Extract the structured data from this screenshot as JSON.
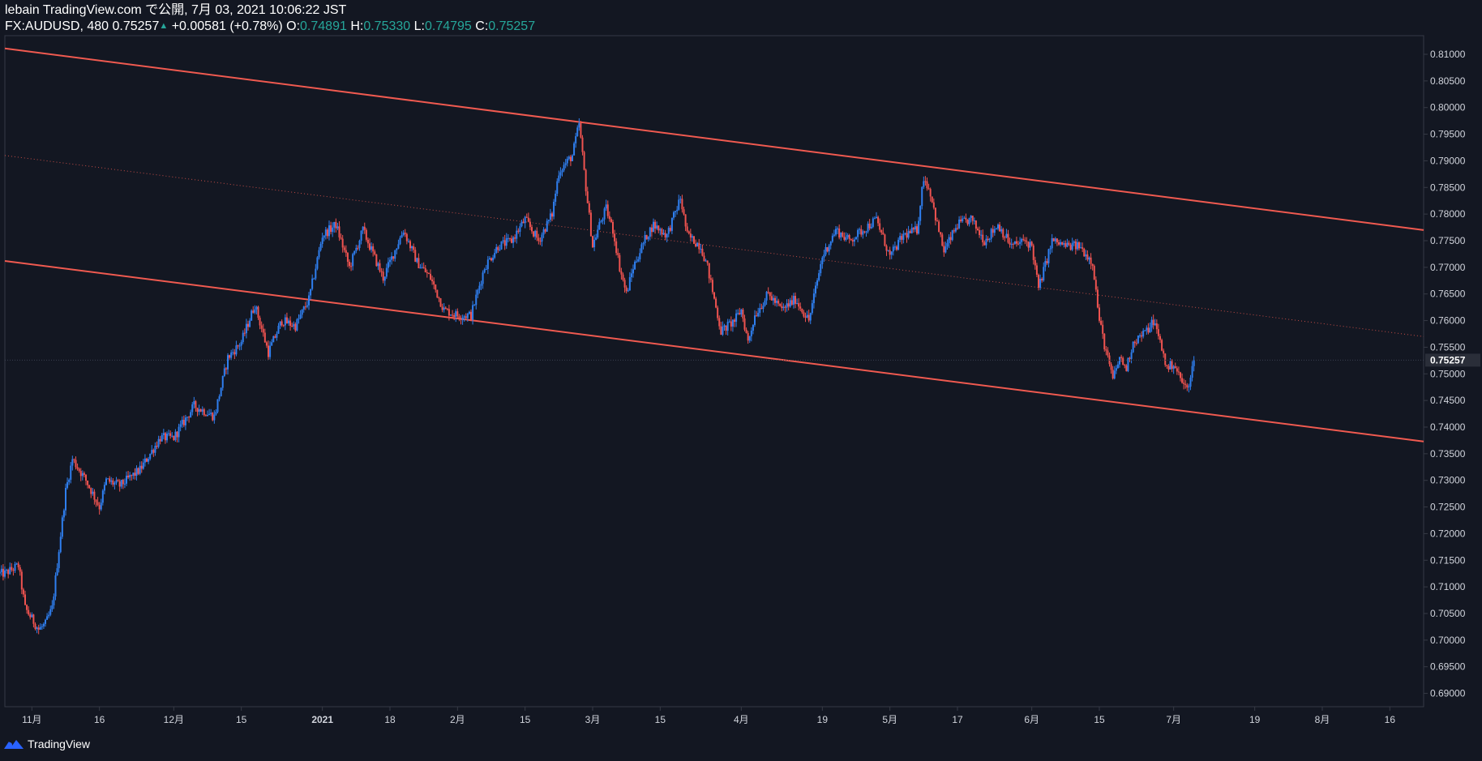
{
  "header": {
    "published": "lebain TradingView.com で公開, 7月 03, 2021 10:06:22 JST",
    "symbol": "FX:AUDUSD, 480",
    "last": "0.75257",
    "change": "+0.00581 (+0.78%)",
    "o_label": "O:",
    "o_value": "0.74891",
    "h_label": "H:",
    "h_value": "0.75330",
    "l_label": "L:",
    "l_value": "0.74795",
    "c_label": "C:",
    "c_value": "0.75257"
  },
  "footer": {
    "brand": "TradingView"
  },
  "colors": {
    "background": "#131722",
    "up": "#2f7ff0",
    "down": "#ef5350",
    "channel": "#f05a50",
    "axis_text": "#d1d4dc",
    "grid_border": "#363a45",
    "teal": "#26a69a"
  },
  "chart_data": {
    "type": "candlestick",
    "symbol": "FX:AUDUSD",
    "interval": "480",
    "ylim": [
      0.6875,
      0.8135
    ],
    "y_ticks": [
      "0.81000",
      "0.80500",
      "0.80000",
      "0.79500",
      "0.79000",
      "0.78500",
      "0.78000",
      "0.77500",
      "0.77000",
      "0.76500",
      "0.76000",
      "0.75500",
      "0.75000",
      "0.74500",
      "0.74000",
      "0.73500",
      "0.73000",
      "0.72500",
      "0.72000",
      "0.71500",
      "0.71000",
      "0.70500",
      "0.70000",
      "0.69500",
      "0.69000"
    ],
    "last_price_label": "0.75257",
    "last_price": 0.75257,
    "x_index_range": [
      0,
      210
    ],
    "x_ticks": [
      {
        "label": "11月",
        "i": 4
      },
      {
        "label": "16",
        "i": 14
      },
      {
        "label": "12月",
        "i": 25
      },
      {
        "label": "15",
        "i": 35
      },
      {
        "label": "2021",
        "i": 47
      },
      {
        "label": "18",
        "i": 57
      },
      {
        "label": "2月",
        "i": 67
      },
      {
        "label": "15",
        "i": 77
      },
      {
        "label": "3月",
        "i": 87
      },
      {
        "label": "15",
        "i": 97
      },
      {
        "label": "4月",
        "i": 109
      },
      {
        "label": "19",
        "i": 121
      },
      {
        "label": "5月",
        "i": 131
      },
      {
        "label": "17",
        "i": 141
      },
      {
        "label": "6月",
        "i": 152
      },
      {
        "label": "15",
        "i": 162
      },
      {
        "label": "7月",
        "i": 173
      },
      {
        "label": "19",
        "i": 185
      },
      {
        "label": "8月",
        "i": 195
      },
      {
        "label": "16",
        "i": 205
      }
    ],
    "price_path": [
      [
        0,
        0.7125
      ],
      [
        2,
        0.714
      ],
      [
        3,
        0.706
      ],
      [
        5,
        0.702
      ],
      [
        6,
        0.703
      ],
      [
        7,
        0.706
      ],
      [
        8,
        0.717
      ],
      [
        9,
        0.728
      ],
      [
        10,
        0.734
      ],
      [
        12,
        0.73
      ],
      [
        14,
        0.725
      ],
      [
        15,
        0.73
      ],
      [
        17,
        0.729
      ],
      [
        20,
        0.732
      ],
      [
        23,
        0.738
      ],
      [
        25,
        0.738
      ],
      [
        28,
        0.744
      ],
      [
        31,
        0.742
      ],
      [
        33,
        0.753
      ],
      [
        35,
        0.756
      ],
      [
        37,
        0.763
      ],
      [
        39,
        0.754
      ],
      [
        41,
        0.76
      ],
      [
        43,
        0.759
      ],
      [
        45,
        0.764
      ],
      [
        47,
        0.776
      ],
      [
        49,
        0.778
      ],
      [
        51,
        0.77
      ],
      [
        53,
        0.777
      ],
      [
        56,
        0.768
      ],
      [
        59,
        0.777
      ],
      [
        61,
        0.771
      ],
      [
        63,
        0.768
      ],
      [
        65,
        0.762
      ],
      [
        67,
        0.761
      ],
      [
        69,
        0.761
      ],
      [
        71,
        0.77
      ],
      [
        73,
        0.774
      ],
      [
        75,
        0.775
      ],
      [
        77,
        0.779
      ],
      [
        79,
        0.775
      ],
      [
        81,
        0.78
      ],
      [
        82,
        0.788
      ],
      [
        84,
        0.791
      ],
      [
        85,
        0.797
      ],
      [
        86,
        0.785
      ],
      [
        87,
        0.774
      ],
      [
        88,
        0.778
      ],
      [
        89,
        0.781
      ],
      [
        90,
        0.777
      ],
      [
        91,
        0.77
      ],
      [
        92,
        0.765
      ],
      [
        93,
        0.77
      ],
      [
        95,
        0.776
      ],
      [
        96,
        0.778
      ],
      [
        98,
        0.776
      ],
      [
        100,
        0.783
      ],
      [
        101,
        0.776
      ],
      [
        103,
        0.774
      ],
      [
        104,
        0.77
      ],
      [
        106,
        0.758
      ],
      [
        108,
        0.76
      ],
      [
        109,
        0.762
      ],
      [
        110,
        0.756
      ],
      [
        111,
        0.761
      ],
      [
        113,
        0.765
      ],
      [
        115,
        0.762
      ],
      [
        117,
        0.764
      ],
      [
        119,
        0.76
      ],
      [
        121,
        0.772
      ],
      [
        123,
        0.777
      ],
      [
        125,
        0.775
      ],
      [
        127,
        0.777
      ],
      [
        129,
        0.779
      ],
      [
        131,
        0.772
      ],
      [
        133,
        0.776
      ],
      [
        135,
        0.777
      ],
      [
        136,
        0.787
      ],
      [
        137,
        0.784
      ],
      [
        138,
        0.778
      ],
      [
        139,
        0.773
      ],
      [
        141,
        0.778
      ],
      [
        143,
        0.779
      ],
      [
        145,
        0.775
      ],
      [
        147,
        0.778
      ],
      [
        149,
        0.774
      ],
      [
        151,
        0.775
      ],
      [
        152,
        0.774
      ],
      [
        153,
        0.766
      ],
      [
        155,
        0.775
      ],
      [
        157,
        0.774
      ],
      [
        159,
        0.774
      ],
      [
        161,
        0.771
      ],
      [
        162,
        0.76
      ],
      [
        163,
        0.754
      ],
      [
        164,
        0.749
      ],
      [
        165,
        0.753
      ],
      [
        166,
        0.751
      ],
      [
        167,
        0.756
      ],
      [
        169,
        0.758
      ],
      [
        170,
        0.76
      ],
      [
        171,
        0.756
      ],
      [
        172,
        0.751
      ],
      [
        173,
        0.752
      ],
      [
        174,
        0.749
      ],
      [
        175,
        0.747
      ],
      [
        176,
        0.7526
      ]
    ],
    "channel": {
      "upper": {
        "from": {
          "i": 0,
          "price": 0.8111
        },
        "to": {
          "i": 210,
          "price": 0.777
        }
      },
      "middle": {
        "from": {
          "i": 0,
          "price": 0.791
        },
        "to": {
          "i": 210,
          "price": 0.757
        }
      },
      "lower": {
        "from": {
          "i": 0,
          "price": 0.7712
        },
        "to": {
          "i": 210,
          "price": 0.7373
        }
      }
    }
  }
}
